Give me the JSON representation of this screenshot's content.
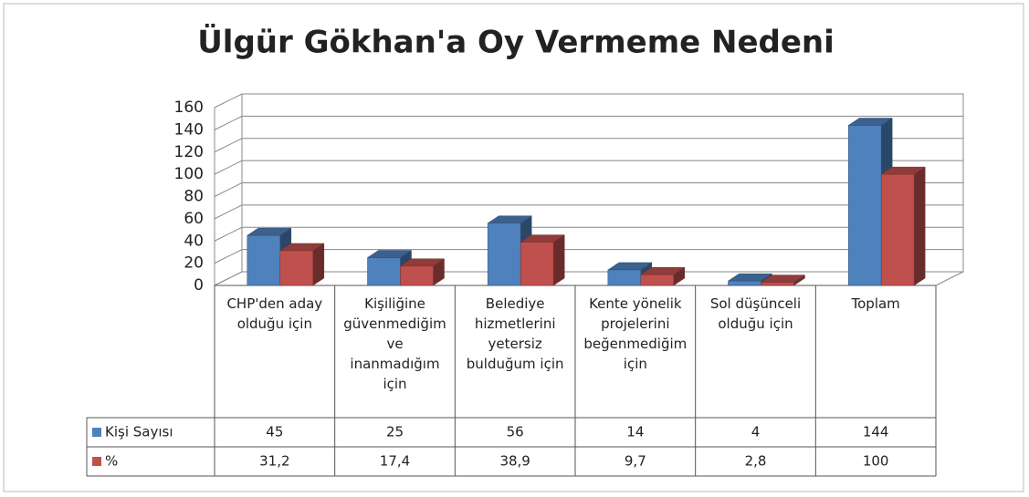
{
  "chart_data": {
    "type": "bar3d",
    "title": "Ülgür Gökhan'a Oy Vermeme Nedeni",
    "categories": [
      "CHP'den aday olduğu için",
      "Kişiliğine güvenmediğim ve inanmadığım için",
      "Belediye hizmetlerini yetersiz bulduğum için",
      "Kente yönelik projelerini beğenmediğim için",
      "Sol düşünceli olduğu için",
      "Toplam"
    ],
    "series": [
      {
        "name": "Kişi Sayısı",
        "color": "#4f81bd",
        "values": [
          45,
          25,
          56,
          14,
          4,
          144
        ]
      },
      {
        "name": "%",
        "color": "#c0504d",
        "values": [
          31.2,
          17.4,
          38.9,
          9.7,
          2.8,
          100
        ],
        "value_labels": [
          "31,2",
          "17,4",
          "38,9",
          "9,7",
          "2,8",
          "100"
        ]
      }
    ],
    "ylim": [
      0,
      160
    ],
    "yticks": [
      0,
      20,
      40,
      60,
      80,
      100,
      120,
      140,
      160
    ],
    "grid": true
  }
}
